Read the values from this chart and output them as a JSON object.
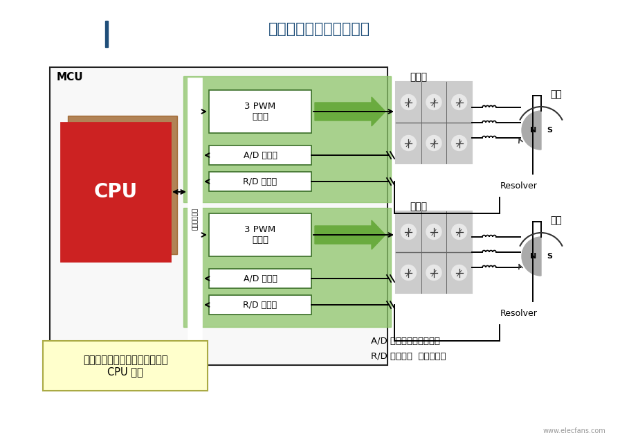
{
  "title": "常规的微控制器系统构成",
  "title_color": "#1F4E79",
  "title_fontsize": 16,
  "bg_color": "#FFFFFF",
  "mcu_label": "MCU",
  "cpu_label": "CPU",
  "bus_label": "外围总线接口",
  "pwm_label": "3 PWM\n定时器",
  "ad_label": "A/D 转换器",
  "rd_label": "R/D 转换器",
  "inverter_label1": "逆变器",
  "inverter_label2": "逆变器",
  "motor_label1": "电机",
  "motor_label2": "电机",
  "resolver_label": "Resolver",
  "note_text": "低层电机控制处理占用了大部分\nCPU 资源",
  "ad_note": "A/D 转换器：模数转换器",
  "rd_note": "R/D 转换器：  旋转解码器",
  "green_arrow_color": "#6AAB3F",
  "green_bg_color": "#8DC56A",
  "red_color": "#CC2222",
  "shadow_color": "#8B4500",
  "gray_inv": "#BBBBBB",
  "note_bg": "#FFFFCC",
  "note_border": "#AAAA44",
  "line_color": "#000000",
  "box_border": "#3A6E28",
  "resolver_bg": "#FFFFFF"
}
